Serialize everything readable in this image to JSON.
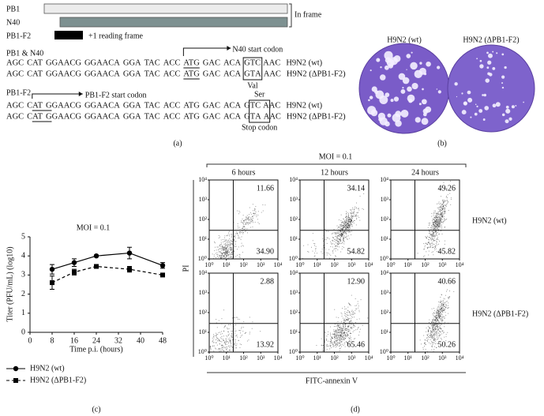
{
  "panel_a": {
    "frames": {
      "rows": [
        {
          "label": "PB1"
        },
        {
          "label": "N40"
        },
        {
          "label": "PB1-F2"
        }
      ],
      "in_frame": "In frame",
      "reading_frame": "+1 reading frame"
    },
    "sequences": [
      {
        "title": "PB1 & N40",
        "start_label": "N40 start codon",
        "codon_label": "Val",
        "lines": [
          {
            "tokens": [
              "AGC",
              "CAT",
              "GGAACG",
              "GGAACA",
              "GGA",
              "TAC",
              "ACC",
              "ATG",
              "GAC",
              "ACA",
              "GT",
              "C",
              "AAC"
            ],
            "strain": "H9N2 (wt)"
          },
          {
            "tokens": [
              "AGC",
              "CAT",
              "GGAACG",
              "GGAACA",
              "GGA",
              "TAC",
              "ACC",
              "ATG",
              "GAC",
              "ACA",
              "GT",
              "A",
              "AAC"
            ],
            "strain": "H9N2 (ΔPB1-F2)"
          }
        ]
      },
      {
        "title": "PB1-F2",
        "start_label": "PB1-F2 start codon",
        "codon_label": "Ser",
        "stop_label": "Stop codon",
        "lines": [
          {
            "tokens": [
              "AGC",
              "CAT",
              "GGAACG",
              "GGAACA",
              "GGA",
              "TAC",
              "ACC",
              "ATG",
              "GAC",
              "ACA",
              "GT",
              "C",
              "AAC"
            ],
            "strain": "H9N2 (wt)"
          },
          {
            "tokens": [
              "AGC",
              "CAT",
              "GGAACG",
              "GGAACA",
              "GGA",
              "TAC",
              "ACC",
              "ATG",
              "GAC",
              "ACA",
              "GT",
              "A",
              "AAC"
            ],
            "strain": "H9N2 (ΔPB1-F2)"
          }
        ]
      }
    ],
    "caption": "(a)"
  },
  "panel_b": {
    "labels": [
      "H9N2 (wt)",
      "H9N2 (ΔPB1-F2)"
    ],
    "caption": "(b)"
  },
  "chart_data": [
    {
      "type": "line",
      "title": "MOI = 0.1",
      "x_label": "Time p.i. (hours)",
      "y_label": "Titer (PFU/mL) (log10)",
      "x": [
        8,
        16,
        24,
        36,
        48
      ],
      "xlim": [
        0,
        48
      ],
      "xticks": [
        0,
        8,
        16,
        24,
        32,
        40,
        48
      ],
      "ylim": [
        0,
        5
      ],
      "yticks": [
        0,
        1,
        2,
        3,
        4,
        5
      ],
      "legend": "below",
      "series": [
        {
          "name": "H9N2 (wt)",
          "color": "#000000",
          "marker": "circle",
          "dash": "solid",
          "values": [
            3.3,
            3.65,
            4.0,
            4.15,
            3.5
          ],
          "errors": [
            0.25,
            0.2,
            0.05,
            0.3,
            0.15
          ]
        },
        {
          "name": "H9N2 (ΔPB1-F2)",
          "color": "#000000",
          "marker": "square",
          "dash": "dashed",
          "values": [
            2.6,
            3.15,
            3.45,
            3.3,
            3.0
          ],
          "errors": [
            0.35,
            0.15,
            0.05,
            0.15,
            0.08
          ]
        }
      ],
      "caption": "(c)"
    }
  ],
  "panel_d": {
    "title": "MOI = 0.1",
    "columns": [
      "6 hours",
      "12 hours",
      "24 hours"
    ],
    "rows": [
      "H9N2 (wt)",
      "H9N2 (ΔPB1-F2)"
    ],
    "quadrants": [
      [
        [
          "11.66",
          "34.90"
        ],
        [
          "34.14",
          "54.82"
        ],
        [
          "49.26",
          "45.82"
        ]
      ],
      [
        [
          "2.88",
          "13.92"
        ],
        [
          "12.90",
          "65.46"
        ],
        [
          "40.66",
          "50.26"
        ]
      ]
    ],
    "ticks": [
      {
        "value": 1,
        "label": "10⁰"
      },
      {
        "value": 10,
        "label": "10¹"
      },
      {
        "value": 100,
        "label": "10²"
      },
      {
        "value": 1000,
        "label": "10³"
      },
      {
        "value": 10000,
        "label": "10⁴"
      }
    ],
    "log": true,
    "x_label": "FITC-annexin V",
    "y_label": "PI",
    "caption": "(d)"
  }
}
